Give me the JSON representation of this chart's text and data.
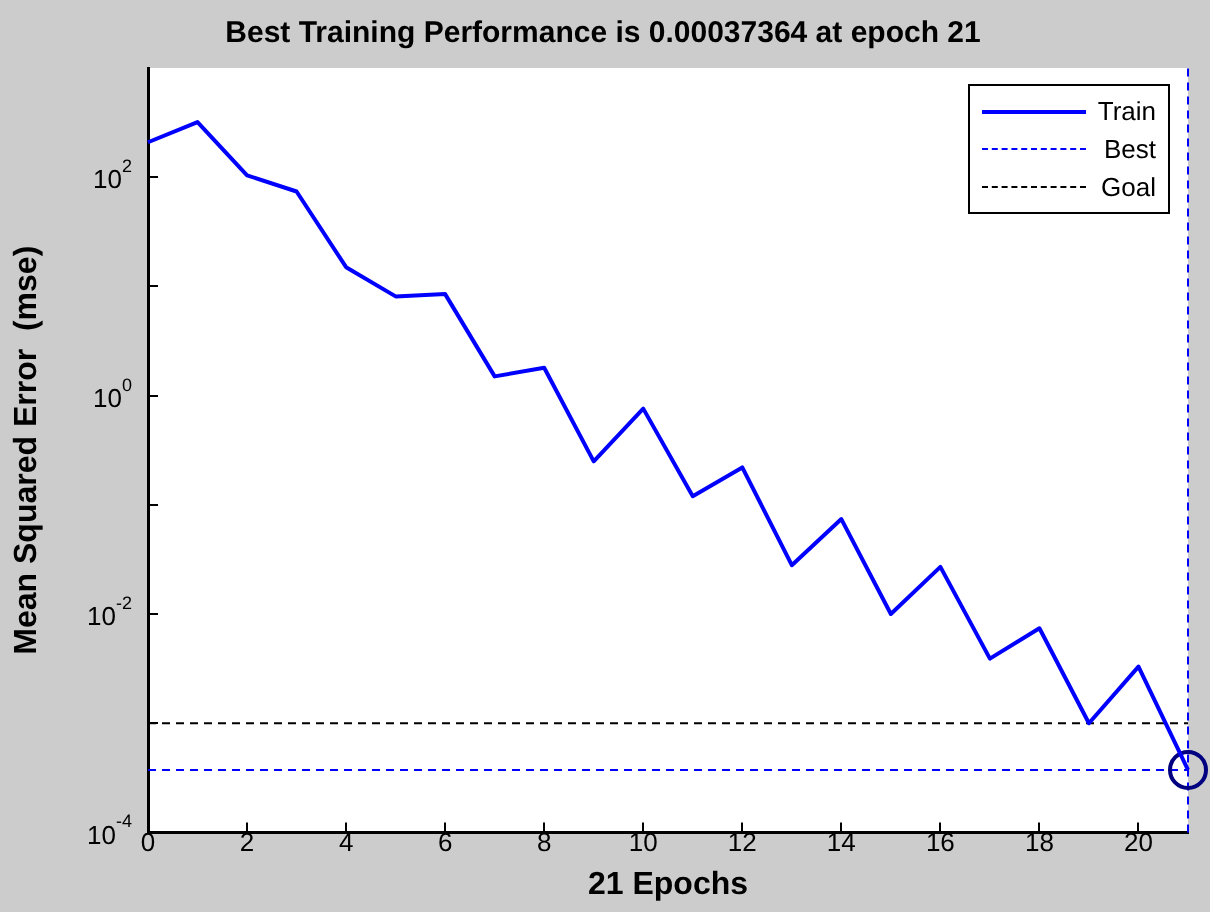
{
  "chart_data": {
    "type": "line",
    "title": "Best Training Performance is 0.00037364 at epoch 21",
    "xlabel": "21 Epochs",
    "ylabel": "Mean Squared Error  (mse)",
    "log": "y",
    "grid": false,
    "legend": "top right",
    "xlim": [
      0,
      21
    ],
    "xticks": [
      0,
      2,
      4,
      6,
      8,
      10,
      12,
      14,
      16,
      18,
      20
    ],
    "ylim": [
      0.0001,
      1000
    ],
    "yticks": [
      {
        "value": 0.0001,
        "label": "10$^{-4}$"
      },
      {
        "value": 0.001,
        "label": null
      },
      {
        "value": 0.01,
        "label": "10$^{-2}$"
      },
      {
        "value": 0.1,
        "label": null
      },
      {
        "value": 1,
        "label": "10$^{0}$"
      },
      {
        "value": 10,
        "label": null
      },
      {
        "value": 100,
        "label": "10$^{2}$"
      }
    ],
    "series": [
      {
        "name": "Train",
        "color": "#0000ff",
        "marker": "none",
        "line_style": "solid",
        "x": [
          0,
          1,
          2,
          3,
          4,
          5,
          6,
          7,
          8,
          9,
          10,
          11,
          12,
          13,
          14,
          15,
          16,
          17,
          18,
          19,
          20,
          21
        ],
        "values": [
          209,
          320,
          104,
          74,
          15,
          8.1,
          8.5,
          1.5,
          1.8,
          0.25,
          0.76,
          0.12,
          0.22,
          0.028,
          0.074,
          0.01,
          0.027,
          0.0039,
          0.0074,
          0.001,
          0.0033,
          0.00037364
        ]
      },
      {
        "type": "scatter",
        "color": "#000080",
        "marker": "circle",
        "x": [
          21
        ],
        "values": [
          0.00037364
        ]
      }
    ],
    "ref_lines": [
      {
        "axis": "y",
        "value": 0.00037364,
        "label": "Best",
        "color": "#0000ff",
        "line_style": "dashed"
      },
      {
        "axis": "x",
        "value": 21,
        "color": "#0000ff",
        "line_style": "dashed"
      },
      {
        "axis": "y",
        "value": 0.001,
        "label": "Goal",
        "color": "#000000",
        "line_style": "dashed"
      }
    ]
  }
}
